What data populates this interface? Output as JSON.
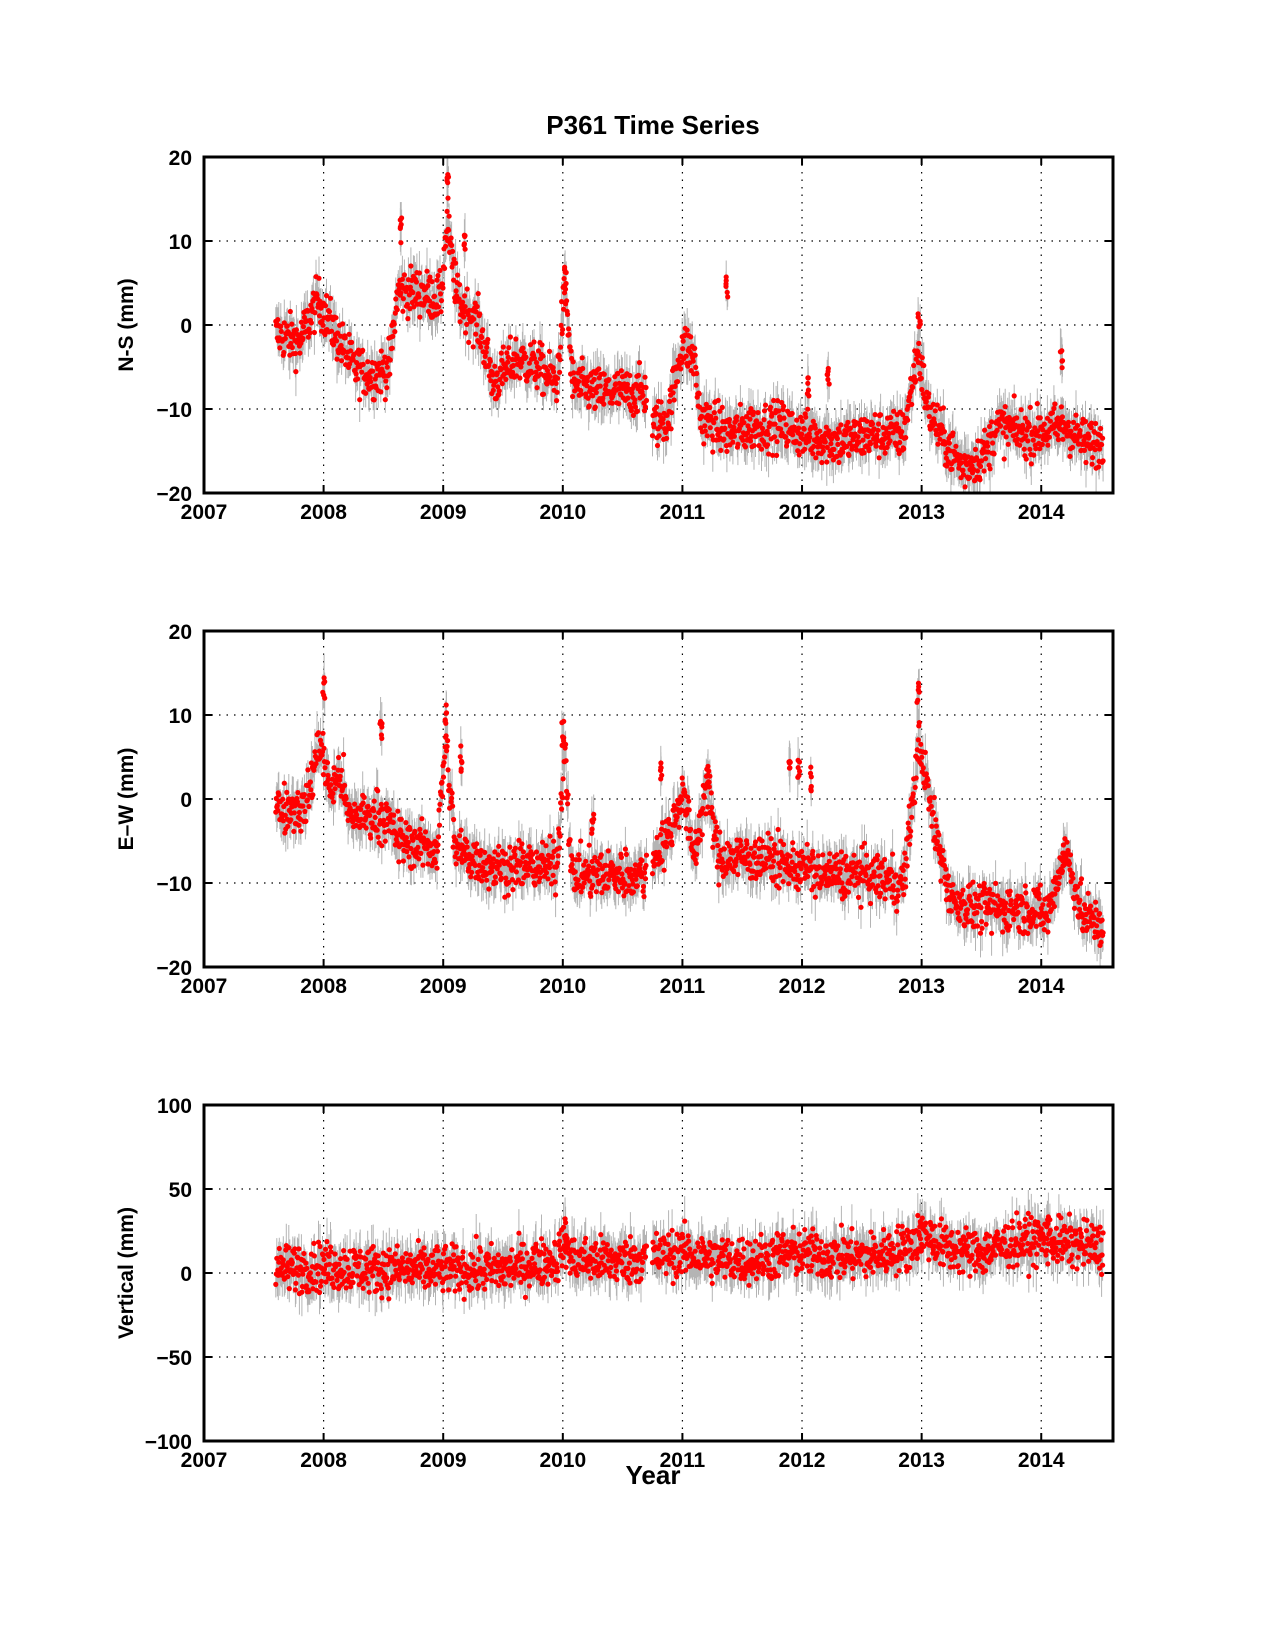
{
  "figure": {
    "title": "P361 Time Series",
    "xlabel": "Year"
  },
  "colors": {
    "points": "#ff0000",
    "errorbars": "#b4b4b4",
    "axes": "#000000",
    "grid": "#000000"
  },
  "chart_data": [
    {
      "type": "scatter",
      "title": "P361 Time Series",
      "xlabel": "",
      "ylabel": "N-S (mm)",
      "xlim": [
        2007,
        2014.6
      ],
      "ylim": [
        -20,
        20
      ],
      "xticks": [
        "2007",
        "2008",
        "2009",
        "2010",
        "2011",
        "2012",
        "2013",
        "2014"
      ],
      "yticks": [
        "20",
        "10",
        "0",
        "−10",
        "−20"
      ],
      "grid": true,
      "error_bars": true,
      "trend": [
        [
          2007.6,
          -1
        ],
        [
          2007.8,
          -2
        ],
        [
          2007.95,
          3
        ],
        [
          2008.1,
          -1
        ],
        [
          2008.25,
          -5
        ],
        [
          2008.4,
          -6
        ],
        [
          2008.55,
          -5
        ],
        [
          2008.62,
          4
        ],
        [
          2008.8,
          4
        ],
        [
          2008.98,
          3
        ],
        [
          2009.03,
          12
        ],
        [
          2009.12,
          3
        ],
        [
          2009.3,
          0
        ],
        [
          2009.42,
          -7
        ],
        [
          2009.6,
          -4
        ],
        [
          2009.8,
          -5
        ],
        [
          2009.95,
          -7
        ],
        [
          2010.02,
          5
        ],
        [
          2010.08,
          -7
        ],
        [
          2010.3,
          -8
        ],
        [
          2010.7,
          -8
        ],
        [
          2010.75,
          -12
        ],
        [
          2010.88,
          -11
        ],
        [
          2011.0,
          -2
        ],
        [
          2011.1,
          -4
        ],
        [
          2011.15,
          -11
        ],
        [
          2011.4,
          -13
        ],
        [
          2011.6,
          -12
        ],
        [
          2011.85,
          -12
        ],
        [
          2012.0,
          -13
        ],
        [
          2012.3,
          -14
        ],
        [
          2012.6,
          -13
        ],
        [
          2012.85,
          -13
        ],
        [
          2012.97,
          -3
        ],
        [
          2013.05,
          -10
        ],
        [
          2013.2,
          -14
        ],
        [
          2013.35,
          -17
        ],
        [
          2013.55,
          -15
        ],
        [
          2013.62,
          -12
        ],
        [
          2013.9,
          -13
        ],
        [
          2014.2,
          -12
        ],
        [
          2014.35,
          -14
        ],
        [
          2014.52,
          -14
        ]
      ],
      "spikes": [
        [
          2008.65,
          12.8
        ],
        [
          2009.04,
          18
        ],
        [
          2009.18,
          11
        ],
        [
          2010.02,
          7
        ],
        [
          2011.37,
          6
        ],
        [
          2012.05,
          -6
        ],
        [
          2012.22,
          -5
        ],
        [
          2012.98,
          2.5
        ],
        [
          2014.17,
          -2.5
        ]
      ]
    },
    {
      "type": "scatter",
      "title": "",
      "xlabel": "",
      "ylabel": "E–W (mm)",
      "xlim": [
        2007,
        2014.6
      ],
      "ylim": [
        -20,
        20
      ],
      "xticks": [
        "2007",
        "2008",
        "2009",
        "2010",
        "2011",
        "2012",
        "2013",
        "2014"
      ],
      "yticks": [
        "20",
        "10",
        "0",
        "−10",
        "−20"
      ],
      "grid": true,
      "error_bars": true,
      "trend": [
        [
          2007.6,
          -1
        ],
        [
          2007.85,
          -1
        ],
        [
          2007.97,
          7
        ],
        [
          2008.05,
          1
        ],
        [
          2008.15,
          3
        ],
        [
          2008.2,
          -2
        ],
        [
          2008.5,
          -2
        ],
        [
          2008.65,
          -5
        ],
        [
          2008.95,
          -6
        ],
        [
          2009.02,
          7
        ],
        [
          2009.1,
          -6
        ],
        [
          2009.4,
          -8
        ],
        [
          2009.95,
          -8
        ],
        [
          2010.02,
          7
        ],
        [
          2010.07,
          -9
        ],
        [
          2010.4,
          -9
        ],
        [
          2010.7,
          -9
        ],
        [
          2010.75,
          -7
        ],
        [
          2010.9,
          -4
        ],
        [
          2011.0,
          1
        ],
        [
          2011.1,
          -7
        ],
        [
          2011.2,
          2
        ],
        [
          2011.3,
          -7
        ],
        [
          2011.7,
          -7
        ],
        [
          2011.9,
          -8
        ],
        [
          2012.0,
          -8
        ],
        [
          2012.15,
          -9
        ],
        [
          2012.5,
          -9
        ],
        [
          2012.85,
          -10
        ],
        [
          2012.98,
          7
        ],
        [
          2013.1,
          -3
        ],
        [
          2013.25,
          -12
        ],
        [
          2013.45,
          -13
        ],
        [
          2013.65,
          -13
        ],
        [
          2013.95,
          -13
        ],
        [
          2014.05,
          -14
        ],
        [
          2014.2,
          -6
        ],
        [
          2014.35,
          -14
        ],
        [
          2014.52,
          -15
        ]
      ],
      "spikes": [
        [
          2008.0,
          15
        ],
        [
          2008.48,
          10
        ],
        [
          2009.02,
          11.5
        ],
        [
          2009.15,
          6.5
        ],
        [
          2010.0,
          9.5
        ],
        [
          2010.25,
          -1
        ],
        [
          2010.82,
          5
        ],
        [
          2011.22,
          4.5
        ],
        [
          2011.9,
          5
        ],
        [
          2011.97,
          5.5
        ],
        [
          2012.08,
          4
        ],
        [
          2012.97,
          13.8
        ],
        [
          2014.18,
          -4.5
        ]
      ]
    },
    {
      "type": "scatter",
      "title": "",
      "xlabel": "Year",
      "ylabel": "Vertical (mm)",
      "xlim": [
        2007,
        2014.6
      ],
      "ylim": [
        -100,
        100
      ],
      "xticks": [
        "2007",
        "2008",
        "2009",
        "2010",
        "2011",
        "2012",
        "2013",
        "2014"
      ],
      "yticks": [
        "100",
        "50",
        "0",
        "−50",
        "−100"
      ],
      "grid": true,
      "error_bars": true,
      "trend": [
        [
          2007.6,
          2
        ],
        [
          2008.0,
          4
        ],
        [
          2008.5,
          2
        ],
        [
          2009.0,
          2
        ],
        [
          2009.5,
          2
        ],
        [
          2009.95,
          8
        ],
        [
          2010.02,
          20
        ],
        [
          2010.08,
          8
        ],
        [
          2010.5,
          7
        ],
        [
          2010.75,
          10
        ],
        [
          2011.0,
          12
        ],
        [
          2011.3,
          8
        ],
        [
          2011.6,
          8
        ],
        [
          2011.9,
          12
        ],
        [
          2012.3,
          10
        ],
        [
          2012.6,
          10
        ],
        [
          2012.9,
          16
        ],
        [
          2013.0,
          24
        ],
        [
          2013.2,
          15
        ],
        [
          2013.5,
          12
        ],
        [
          2013.65,
          15
        ],
        [
          2013.75,
          18
        ],
        [
          2014.0,
          20
        ],
        [
          2014.2,
          18
        ],
        [
          2014.52,
          15
        ]
      ],
      "spikes": [
        [
          2010.02,
          25
        ],
        [
          2013.0,
          30
        ],
        [
          2014.05,
          35
        ]
      ]
    }
  ]
}
